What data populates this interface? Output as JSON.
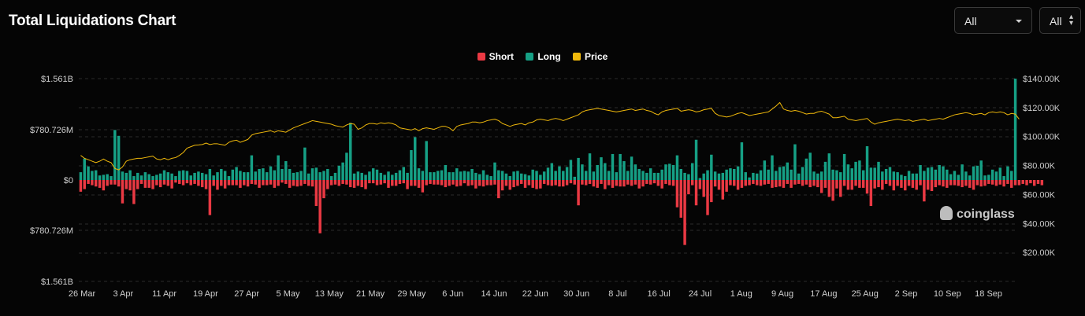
{
  "header": {
    "title": "Total Liquidations Chart",
    "filter1": "All",
    "filter2": "All"
  },
  "watermark": "coinglass",
  "colors": {
    "short": "#ea3943",
    "long": "#16a085",
    "price": "#f0b90b"
  },
  "chart_data": {
    "type": "bar",
    "legend": [
      {
        "name": "Short",
        "color": "#ea3943"
      },
      {
        "name": "Long",
        "color": "#16a085"
      },
      {
        "name": "Price",
        "color": "#f0b90b"
      }
    ],
    "legend_position": "top-center",
    "x_tick_labels": [
      "26 Mar",
      "3 Apr",
      "11 Apr",
      "19 Apr",
      "27 Apr",
      "5 May",
      "13 May",
      "21 May",
      "29 May",
      "6 Jun",
      "14 Jun",
      "22 Jun",
      "30 Jun",
      "8 Jul",
      "16 Jul",
      "24 Jul",
      "1 Aug",
      "9 Aug",
      "17 Aug",
      "25 Aug",
      "2 Sep",
      "10 Sep",
      "18 Sep"
    ],
    "y_left_ticks": [
      "$1.561B",
      "$780.726M",
      "$0",
      "$780.726M",
      "$1.561B"
    ],
    "y_left_range_usd_millions": [
      -1561,
      1561
    ],
    "y_right_ticks": [
      "$140.00K",
      "$120.00K",
      "$100.00K",
      "$80.00K",
      "$60.00K",
      "$40.00K",
      "$20.00K"
    ],
    "y_right_range_usd": [
      0,
      140000
    ],
    "grid": true,
    "long_usd_millions": [
      120,
      330,
      210,
      140,
      150,
      70,
      80,
      90,
      60,
      770,
      680,
      130,
      110,
      150,
      60,
      110,
      70,
      120,
      90,
      60,
      80,
      100,
      150,
      120,
      100,
      60,
      140,
      150,
      140,
      70,
      110,
      130,
      110,
      90,
      170,
      70,
      120,
      170,
      140,
      60,
      160,
      200,
      140,
      120,
      120,
      380,
      130,
      170,
      180,
      120,
      210,
      150,
      380,
      170,
      290,
      170,
      110,
      120,
      140,
      500,
      100,
      180,
      190,
      120,
      140,
      170,
      60,
      110,
      220,
      270,
      420,
      880,
      100,
      130,
      110,
      80,
      130,
      180,
      160,
      110,
      80,
      130,
      80,
      110,
      150,
      200,
      110,
      460,
      660,
      180,
      140,
      600,
      120,
      120,
      140,
      150,
      230,
      120,
      120,
      180,
      130,
      140,
      130,
      170,
      110,
      90,
      150,
      80,
      60,
      270,
      150,
      140,
      100,
      60,
      130,
      140,
      100,
      90,
      70,
      160,
      140,
      80,
      130,
      190,
      260,
      140,
      210,
      140,
      200,
      310,
      50,
      340,
      240,
      140,
      410,
      130,
      230,
      350,
      260,
      140,
      400,
      120,
      400,
      290,
      140,
      360,
      240,
      170,
      140,
      110,
      180,
      110,
      110,
      160,
      240,
      250,
      230,
      380,
      170,
      110,
      90,
      260,
      620,
      30,
      100,
      150,
      390,
      130,
      100,
      110,
      160,
      180,
      170,
      210,
      580,
      120,
      40,
      110,
      100,
      150,
      300,
      160,
      380,
      140,
      200,
      210,
      270,
      160,
      550,
      100,
      200,
      330,
      420,
      130,
      100,
      130,
      280,
      410,
      160,
      150,
      120,
      400,
      240,
      180,
      280,
      300,
      150,
      520,
      190,
      190,
      280,
      130,
      170,
      200,
      130,
      120,
      80,
      60,
      140,
      100,
      100,
      230,
      140,
      190,
      200,
      160,
      230,
      210,
      160,
      90,
      140,
      80,
      240,
      130,
      70,
      210,
      220,
      300,
      70,
      80,
      160,
      130,
      190,
      60,
      210,
      140,
      1560
    ],
    "short_usd_millions": [
      -180,
      -140,
      -60,
      -80,
      -100,
      -120,
      -160,
      -90,
      -70,
      -70,
      -100,
      -360,
      -140,
      -160,
      -370,
      -140,
      -60,
      -120,
      -120,
      -140,
      -80,
      -110,
      -70,
      -90,
      -130,
      -40,
      -60,
      -80,
      -50,
      -80,
      -60,
      -90,
      -110,
      -140,
      -540,
      -90,
      -150,
      -90,
      -130,
      -80,
      -80,
      -80,
      -120,
      -80,
      -100,
      -60,
      -70,
      -120,
      -80,
      -80,
      -70,
      -120,
      -90,
      -40,
      -60,
      -120,
      -90,
      -100,
      -90,
      -60,
      -90,
      -100,
      -400,
      -820,
      -280,
      -140,
      -80,
      -70,
      -90,
      -60,
      -70,
      -110,
      -120,
      -90,
      -110,
      -140,
      -50,
      -50,
      -80,
      -70,
      -50,
      -120,
      -90,
      -90,
      -60,
      -50,
      -140,
      -90,
      -90,
      -120,
      -190,
      -80,
      -60,
      -70,
      -70,
      -80,
      -110,
      -90,
      -70,
      -100,
      -90,
      -50,
      -90,
      -80,
      -130,
      -90,
      -100,
      -80,
      -80,
      -70,
      -280,
      -160,
      -90,
      -150,
      -110,
      -90,
      -60,
      -120,
      -80,
      -120,
      -140,
      -130,
      -60,
      -80,
      -90,
      -80,
      -100,
      -100,
      -80,
      -50,
      -70,
      -390,
      -70,
      -80,
      -60,
      -100,
      -120,
      -60,
      -140,
      -80,
      -120,
      -90,
      -100,
      -100,
      -70,
      -90,
      -70,
      -130,
      -100,
      -60,
      -70,
      -50,
      -90,
      -130,
      -60,
      -80,
      -90,
      -420,
      -580,
      -1000,
      -220,
      -80,
      -390,
      -140,
      -260,
      -540,
      -340,
      -100,
      -150,
      -300,
      -180,
      -80,
      -90,
      -150,
      -120,
      -90,
      -80,
      -60,
      -80,
      -90,
      -70,
      -60,
      -120,
      -110,
      -100,
      -120,
      -60,
      -120,
      -70,
      -60,
      -90,
      -70,
      -110,
      -90,
      -110,
      -200,
      -120,
      -260,
      -320,
      -130,
      -260,
      -90,
      -150,
      -150,
      -90,
      -120,
      -120,
      -210,
      -400,
      -130,
      -110,
      -150,
      -60,
      -90,
      -160,
      -90,
      -120,
      -160,
      -90,
      -120,
      -150,
      -80,
      -330,
      -150,
      -170,
      -110,
      -80,
      -100,
      -120,
      -80,
      -80,
      -90,
      -110,
      -90,
      -120,
      -150,
      -80,
      -100,
      -90,
      -60,
      -70,
      -90,
      -70,
      -100,
      -60,
      -120,
      -80,
      -80,
      -60,
      -80,
      -50,
      -90,
      -60,
      -80
    ],
    "price_usd": [
      87000,
      85000,
      84000,
      83000,
      82000,
      83000,
      84500,
      83000,
      82000,
      78000,
      77000,
      79000,
      83000,
      84000,
      84500,
      85000,
      85000,
      85500,
      86000,
      86500,
      84500,
      84000,
      85000,
      84000,
      85000,
      85500,
      87000,
      89000,
      92000,
      93000,
      94000,
      94200,
      94500,
      95500,
      94500,
      95000,
      95000,
      94500,
      94000,
      96000,
      97000,
      97500,
      96000,
      97000,
      98000,
      101000,
      102000,
      102500,
      103000,
      103500,
      104000,
      103000,
      104000,
      103500,
      103000,
      104500,
      106000,
      107000,
      108000,
      109000,
      110000,
      111000,
      110500,
      110000,
      109500,
      109000,
      108500,
      107500,
      107000,
      106500,
      108000,
      109000,
      108500,
      105000,
      106000,
      108000,
      109000,
      109000,
      108500,
      109500,
      109000,
      109500,
      109000,
      108000,
      106000,
      105500,
      105000,
      104500,
      105500,
      104000,
      105500,
      106000,
      105500,
      105000,
      106000,
      107000,
      107000,
      106000,
      104000,
      107000,
      108000,
      108500,
      109000,
      110000,
      110000,
      109500,
      110000,
      111000,
      111500,
      112000,
      111000,
      109000,
      108000,
      107000,
      108000,
      108500,
      109000,
      108000,
      109500,
      110000,
      111500,
      112000,
      111500,
      111000,
      112000,
      112500,
      112000,
      111000,
      112000,
      113000,
      114000,
      115000,
      117000,
      118000,
      118500,
      119000,
      119500,
      119000,
      118500,
      118000,
      117500,
      117000,
      117500,
      118000,
      118500,
      119000,
      118000,
      118500,
      119000,
      118000,
      117500,
      116000,
      115000,
      117000,
      118000,
      118500,
      119000,
      119500,
      117500,
      118000,
      118500,
      118000,
      117000,
      117500,
      118500,
      119000,
      119500,
      116000,
      114500,
      114000,
      113500,
      114000,
      115000,
      116000,
      116500,
      115500,
      114500,
      115000,
      115500,
      116000,
      116500,
      117000,
      119000,
      121000,
      123500,
      119000,
      118000,
      117500,
      118000,
      117500,
      116500,
      115500,
      116000,
      116000,
      117000,
      117500,
      116500,
      115500,
      113000,
      113000,
      113500,
      114000,
      112000,
      111500,
      111000,
      111500,
      112000,
      112500,
      110000,
      108500,
      109500,
      110000,
      110500,
      111000,
      111500,
      112000,
      111500,
      111000,
      111500,
      110500,
      111000,
      111500,
      112000,
      111000,
      111500,
      112000,
      112500,
      112000,
      113000,
      114000,
      115000,
      115500,
      116000,
      116500,
      116000,
      115000,
      115500,
      116000,
      115000,
      116500,
      117000,
      116500,
      117000,
      116500,
      115000,
      116000,
      115500,
      112000
    ]
  }
}
